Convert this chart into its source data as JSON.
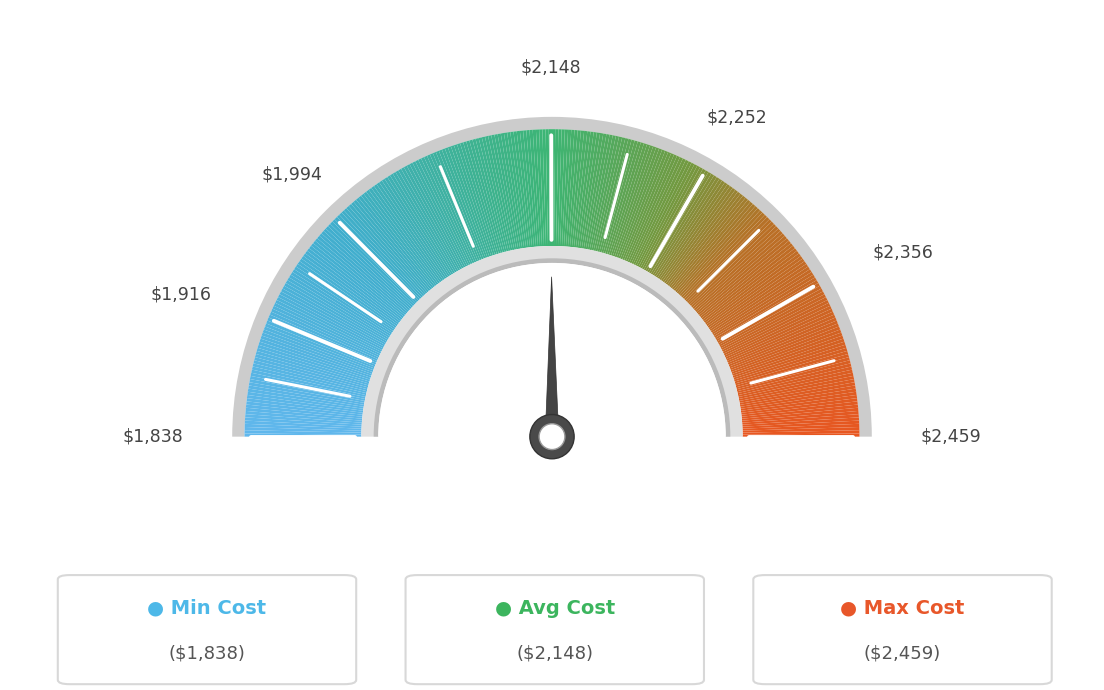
{
  "min_val": 1838,
  "avg_val": 2148,
  "max_val": 2459,
  "labels": [
    "$1,838",
    "$1,916",
    "$1,994",
    "$2,148",
    "$2,252",
    "$2,356",
    "$2,459"
  ],
  "label_values": [
    1838,
    1916,
    1994,
    2148,
    2252,
    2356,
    2459
  ],
  "tick_values": [
    1838,
    1877,
    1916,
    1955,
    1994,
    2071,
    2148,
    2200,
    2252,
    2304,
    2356,
    2407,
    2459
  ],
  "legend_items": [
    {
      "label": "Min Cost",
      "sublabel": "($1,838)",
      "color": "#4db8e8"
    },
    {
      "label": "Avg Cost",
      "sublabel": "($2,148)",
      "color": "#3cb55e"
    },
    {
      "label": "Max Cost",
      "sublabel": "($2,459)",
      "color": "#e8572a"
    }
  ],
  "needle_value": 2148,
  "bg_color": "#ffffff",
  "colors_gradient": [
    [
      0.0,
      [
        0.38,
        0.72,
        0.93
      ]
    ],
    [
      0.25,
      [
        0.25,
        0.68,
        0.8
      ]
    ],
    [
      0.5,
      [
        0.24,
        0.71,
        0.45
      ]
    ],
    [
      0.65,
      [
        0.45,
        0.6,
        0.25
      ]
    ],
    [
      0.75,
      [
        0.72,
        0.44,
        0.15
      ]
    ],
    [
      1.0,
      [
        0.91,
        0.34,
        0.13
      ]
    ]
  ]
}
